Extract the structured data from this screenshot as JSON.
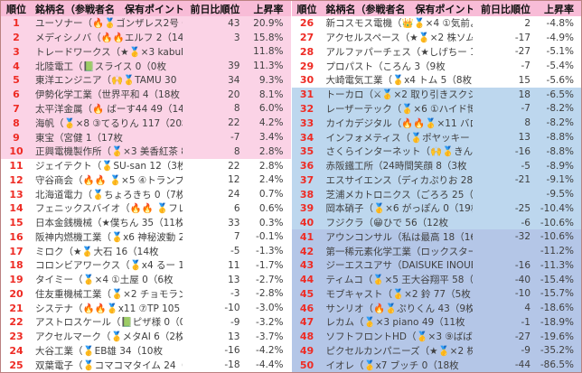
{
  "table": {
    "headers": {
      "rank": "順位",
      "name": "銘柄名（参戦者名　保有ポイント）",
      "prev_rank": "前日比順位",
      "rate": "上昇率"
    },
    "colors": {
      "header_bg": "#f8bcd7",
      "pink": "#fbd3e6",
      "white": "#ffffff",
      "blue_light": "#bdd7ee",
      "blue_dark": "#b4c6e7",
      "rank_red": "#ee2b24",
      "text": "#3f3f3f",
      "border": "#bb8181"
    },
    "rows": [
      {
        "rank": "1",
        "name": "ユーソナー（🔥🥇ゴンザレス2号 61（15枚",
        "prev": "43",
        "rate": "20.9%",
        "bg": "pink"
      },
      {
        "rank": "2",
        "name": "メディシノバ（🔥🔥エルフ 2（14枚",
        "prev": "3",
        "rate": "15.8%",
        "bg": "pink"
      },
      {
        "rank": "3",
        "name": "トレードワークス（★🥇×3 kabuking 31（5枚",
        "prev": "",
        "rate": "11.8%",
        "bg": "pink"
      },
      {
        "rank": "4",
        "name": "北陸電工（📗スライス 0（0枚",
        "prev": "39",
        "rate": "11.3%",
        "bg": "pink"
      },
      {
        "rank": "5",
        "name": "東洋エンジニア（🙌🥇TAMU 30（12枚",
        "prev": "34",
        "rate": "9.3%",
        "bg": "pink"
      },
      {
        "rank": "6",
        "name": "伊勢化学工業（世界平和 4（18枚",
        "prev": "20",
        "rate": "8.1%",
        "bg": "pink"
      },
      {
        "rank": "7",
        "name": "太平洋金属（🔥 ばーす44 49（14枚",
        "prev": "8",
        "rate": "6.0%",
        "bg": "pink"
      },
      {
        "rank": "8",
        "name": "海帆（🥇×8 ③てるりん 117（20枚",
        "prev": "22",
        "rate": "4.2%",
        "bg": "pink"
      },
      {
        "rank": "9",
        "name": "東宝（宮健 1（17枚",
        "prev": "-7",
        "rate": "3.4%",
        "bg": "pink"
      },
      {
        "rank": "10",
        "name": "正興電機製作所（🥇×3 美香紅茶 86（3枚",
        "prev": "8",
        "rate": "2.8%",
        "bg": "pink"
      },
      {
        "rank": "11",
        "name": "ジェイテクト（🥇SU-san 12（3枚",
        "prev": "22",
        "rate": "2.8%",
        "bg": "white"
      },
      {
        "rank": "12",
        "name": "守谷商会（🔥🔥 🥇×5 ④トランプ大明神 113（2枚",
        "prev": "12",
        "rate": "2.4%",
        "bg": "white"
      },
      {
        "rank": "13",
        "name": "北海道電力（🥇ちょろきち 0（7枚",
        "prev": "24",
        "rate": "0.7%",
        "bg": "white"
      },
      {
        "rank": "14",
        "name": "フェニックスバイオ（🔥🔥 🥇フレイム 57（14枚",
        "prev": "6",
        "rate": "0.6%",
        "bg": "white"
      },
      {
        "rank": "15",
        "name": "日本金銭機械（★僕ちん 35（11枚",
        "prev": "33",
        "rate": "0.3%",
        "bg": "white"
      },
      {
        "rank": "16",
        "name": "阪神内燃機工業（🥇x6 神秘波動 20（13枚",
        "prev": "7",
        "rate": "-0.1%",
        "bg": "white"
      },
      {
        "rank": "17",
        "name": "ミロク（★🥇大石 16（14枚",
        "prev": "-5",
        "rate": "-1.3%",
        "bg": "white"
      },
      {
        "rank": "18",
        "name": "コロンビアワークス（🥇x4 るー 16（3枚",
        "prev": "11",
        "rate": "-1.7%",
        "bg": "white"
      },
      {
        "rank": "19",
        "name": "タイミー（🥇×4 ①土屋 0（6枚",
        "prev": "13",
        "rate": "-2.7%",
        "bg": "white"
      },
      {
        "rank": "20",
        "name": "住友重機械工業（🥇×2 チョモランマ天井 64（14枚",
        "prev": "-3",
        "rate": "-2.8%",
        "bg": "white"
      },
      {
        "rank": "21",
        "name": "システナ（🔥🔥🥇x11 ⑦TP 105（14枚",
        "prev": "-10",
        "rate": "-3.0%",
        "bg": "white"
      },
      {
        "rank": "22",
        "name": "アストロスケール（📗ピザ様 0（0枚",
        "prev": "-9",
        "rate": "-3.2%",
        "bg": "white"
      },
      {
        "rank": "23",
        "name": "アクセルマーク（🥇メタAI 6（2枚",
        "prev": "13",
        "rate": "-3.7%",
        "bg": "white"
      },
      {
        "rank": "24",
        "name": "大谷工業（🥇EB雄 34（10枚",
        "prev": "-16",
        "rate": "-4.2%",
        "bg": "white"
      },
      {
        "rank": "25",
        "name": "双葉電子（🥇コマコマタイム 24（12枚",
        "prev": "-18",
        "rate": "-4.4%",
        "bg": "white"
      },
      {
        "rank": "26",
        "name": "新コスモス電機（👑🥇×4 ①気前よく 153（10枚",
        "prev": "2",
        "rate": "-4.8%",
        "bg": "white"
      },
      {
        "rank": "27",
        "name": "アクセルスペース（★🥇×2 株ソムリエ 29（12枚",
        "prev": "-17",
        "rate": "-4.9%",
        "bg": "white"
      },
      {
        "rank": "28",
        "name": "アルファパーチェス（★しげちー 13（11枚",
        "prev": "-27",
        "rate": "-5.1%",
        "bg": "white"
      },
      {
        "rank": "29",
        "name": "プロパスト（ころん 3（9枚",
        "prev": "-7",
        "rate": "-5.4%",
        "bg": "white"
      },
      {
        "rank": "30",
        "name": "大崎電気工業（🥇x4 トム 5（8枚",
        "prev": "15",
        "rate": "-5.6%",
        "bg": "white"
      },
      {
        "rank": "31",
        "name": "トーカロ（⚔🥇×2 取り引きスクショ 48（20枚",
        "prev": "18",
        "rate": "-6.5%",
        "bg": "blue_light"
      },
      {
        "rank": "32",
        "name": "レーザーテック（🥇×6 ①ハイド博士 64（7枚",
        "prev": "-7",
        "rate": "-8.2%",
        "bg": "blue_light"
      },
      {
        "rank": "33",
        "name": "カイカデジタル（🔥🔥🥇×11 バロン 37（2枚",
        "prev": "8",
        "rate": "-8.2%",
        "bg": "blue_light"
      },
      {
        "rank": "34",
        "name": "インフォメティス（🥇ポヤッキー 60（20枚",
        "prev": "13",
        "rate": "-8.8%",
        "bg": "blue_light"
      },
      {
        "rank": "35",
        "name": "さくらインターネット（🙌🥇きんちゃん 51（5枚",
        "prev": "-16",
        "rate": "-8.8%",
        "bg": "blue_light"
      },
      {
        "rank": "36",
        "name": "赤阪鐵工所（24時間笑顔 8（3枚",
        "prev": "-5",
        "rate": "-8.9%",
        "bg": "blue_light"
      },
      {
        "rank": "37",
        "name": "エスサイエンス（ディカぷりお 28（16枚",
        "prev": "-21",
        "rate": "-9.1%",
        "bg": "blue_light"
      },
      {
        "rank": "38",
        "name": "芝浦メカトロニクス（ごろろ 25（17枚",
        "prev": "",
        "rate": "-9.5%",
        "bg": "blue_light"
      },
      {
        "rank": "39",
        "name": "岡本硝子（🥇×6 がっぽん 0（19枚",
        "prev": "-25",
        "rate": "-10.4%",
        "bg": "blue_light"
      },
      {
        "rank": "40",
        "name": "フジクラ（😁ひで 56（12枚",
        "prev": "-6",
        "rate": "-10.6%",
        "bg": "blue_light"
      },
      {
        "rank": "41",
        "name": "アウンコンサル（私は最高 18（16枚",
        "prev": "-32",
        "rate": "-10.6%",
        "bg": "blue_dark"
      },
      {
        "rank": "42",
        "name": "第一稀元素化学工業（ロックスター 0（15枚",
        "prev": "",
        "rate": "-11.2%",
        "bg": "blue_dark"
      },
      {
        "rank": "43",
        "name": "ジーエスユアサ（DAISUKE INOUE 43（18枚",
        "prev": "-16",
        "rate": "-11.3%",
        "bg": "blue_dark"
      },
      {
        "rank": "44",
        "name": "ティムコ（🥇×5 王大谷翔平 58（14枚",
        "prev": "-40",
        "rate": "-15.4%",
        "bg": "blue_dark"
      },
      {
        "rank": "45",
        "name": "モブキャスト（🥇×2 鈴 77（5枚",
        "prev": "-10",
        "rate": "-15.7%",
        "bg": "blue_dark"
      },
      {
        "rank": "46",
        "name": "サンリオ（🔥🥇ぷりくん 43（9枚",
        "prev": "4",
        "rate": "-18.6%",
        "bg": "blue_dark"
      },
      {
        "rank": "47",
        "name": "レカム（🥇×3 piano 49（11枚",
        "prev": "-1",
        "rate": "-18.9%",
        "bg": "blue_dark"
      },
      {
        "rank": "48",
        "name": "ソフトフロントHD（🥇×3 ⑨ばばちっち 97（18枚",
        "prev": "-27",
        "rate": "-19.6%",
        "bg": "blue_dark"
      },
      {
        "rank": "49",
        "name": "ピクセルカンパニーズ（★🥇×2 株のミコト 21（15枚",
        "prev": "-9",
        "rate": "-35.2%",
        "bg": "blue_dark"
      },
      {
        "rank": "50",
        "name": "イオレ（🥇x7 ブッチ 0（18枚",
        "prev": "-44",
        "rate": "-86.5%",
        "bg": "blue_dark"
      }
    ]
  }
}
